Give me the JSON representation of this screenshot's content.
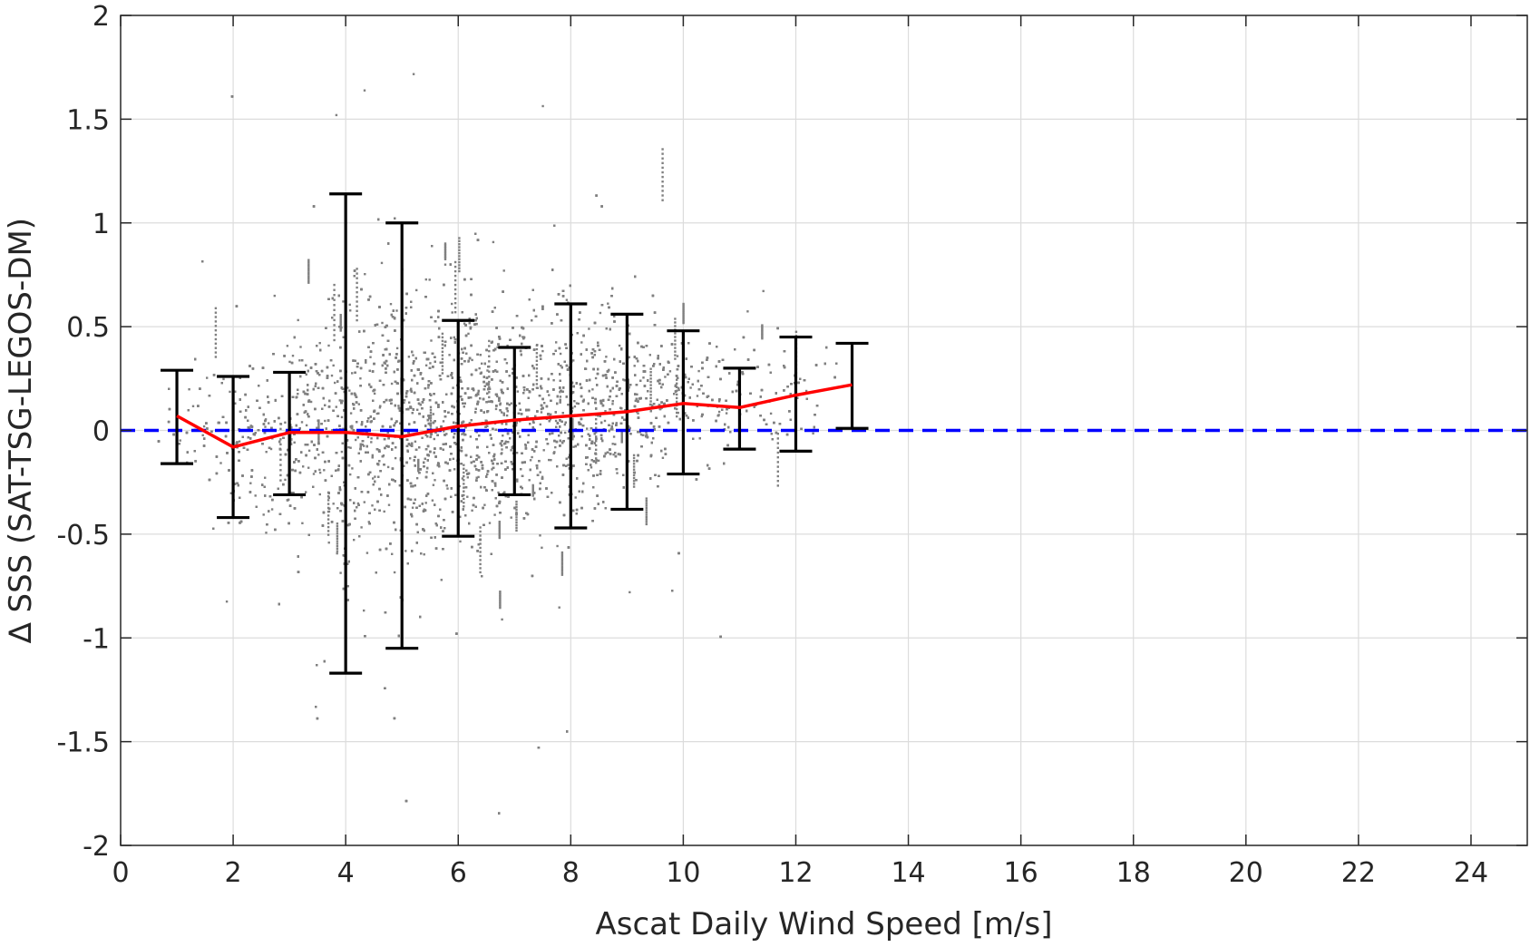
{
  "chart_data": {
    "type": "scatter",
    "title": "",
    "xlabel": "Ascat Daily Wind Speed [m/s]",
    "ylabel": "∆ SSS (SAT-TSG-LEGOS-DM)",
    "xlim": [
      0,
      25
    ],
    "ylim": [
      -2,
      2
    ],
    "xticks": [
      0,
      2,
      4,
      6,
      8,
      10,
      12,
      14,
      16,
      18,
      20,
      22,
      24
    ],
    "yticks": [
      -2,
      -1.5,
      -1,
      -0.5,
      0,
      0.5,
      1,
      1.5,
      2
    ],
    "xtick_labels": [
      "0",
      "2",
      "4",
      "6",
      "8",
      "10",
      "12",
      "14",
      "16",
      "18",
      "20",
      "22",
      "24"
    ],
    "ytick_labels": [
      "-2",
      "-1.5",
      "-1",
      "-0.5",
      "0",
      "0.5",
      "1",
      "1.5",
      "2"
    ],
    "grid": true,
    "colors": {
      "scatter": "#808080",
      "mean_line": "#ff0000",
      "error_bars": "#000000",
      "zero_line": "#0000ff"
    },
    "zero_line": {
      "y": 0,
      "style": "dashed"
    },
    "mean_line": {
      "x": [
        1,
        2,
        3,
        4,
        5,
        6,
        7,
        8,
        9,
        10,
        11,
        12,
        13
      ],
      "y": [
        0.07,
        -0.08,
        -0.01,
        -0.01,
        -0.03,
        0.02,
        0.05,
        0.07,
        0.09,
        0.13,
        0.11,
        0.17,
        0.22
      ]
    },
    "error_bars": [
      {
        "x": 1,
        "low": -0.16,
        "high": 0.29
      },
      {
        "x": 2,
        "low": -0.42,
        "high": 0.26
      },
      {
        "x": 3,
        "low": -0.31,
        "high": 0.28
      },
      {
        "x": 4,
        "low": -1.17,
        "high": 1.14
      },
      {
        "x": 5,
        "low": -1.05,
        "high": 1.0
      },
      {
        "x": 6,
        "low": -0.51,
        "high": 0.53
      },
      {
        "x": 7,
        "low": -0.31,
        "high": 0.4
      },
      {
        "x": 8,
        "low": -0.47,
        "high": 0.61
      },
      {
        "x": 9,
        "low": -0.38,
        "high": 0.56
      },
      {
        "x": 10,
        "low": -0.21,
        "high": 0.48
      },
      {
        "x": 11,
        "low": -0.09,
        "high": 0.3
      },
      {
        "x": 12,
        "low": -0.1,
        "high": 0.45
      },
      {
        "x": 13,
        "low": 0.01,
        "high": 0.42
      }
    ],
    "scatter_envelope": {
      "x": [
        0.5,
        1,
        2,
        3,
        4,
        5,
        6,
        7,
        8,
        9,
        10,
        11,
        12,
        13
      ],
      "mean": [
        0.03,
        0.06,
        -0.05,
        0.0,
        0.0,
        0.0,
        0.04,
        0.07,
        0.1,
        0.14,
        0.16,
        0.18,
        0.2,
        0.25
      ],
      "spread": [
        0.04,
        0.12,
        0.22,
        0.22,
        0.33,
        0.32,
        0.28,
        0.25,
        0.25,
        0.22,
        0.18,
        0.15,
        0.16,
        0.12
      ],
      "density": [
        0.02,
        0.1,
        0.3,
        0.45,
        0.8,
        1.0,
        1.0,
        1.0,
        0.95,
        0.6,
        0.35,
        0.2,
        0.1,
        0.03
      ]
    }
  }
}
